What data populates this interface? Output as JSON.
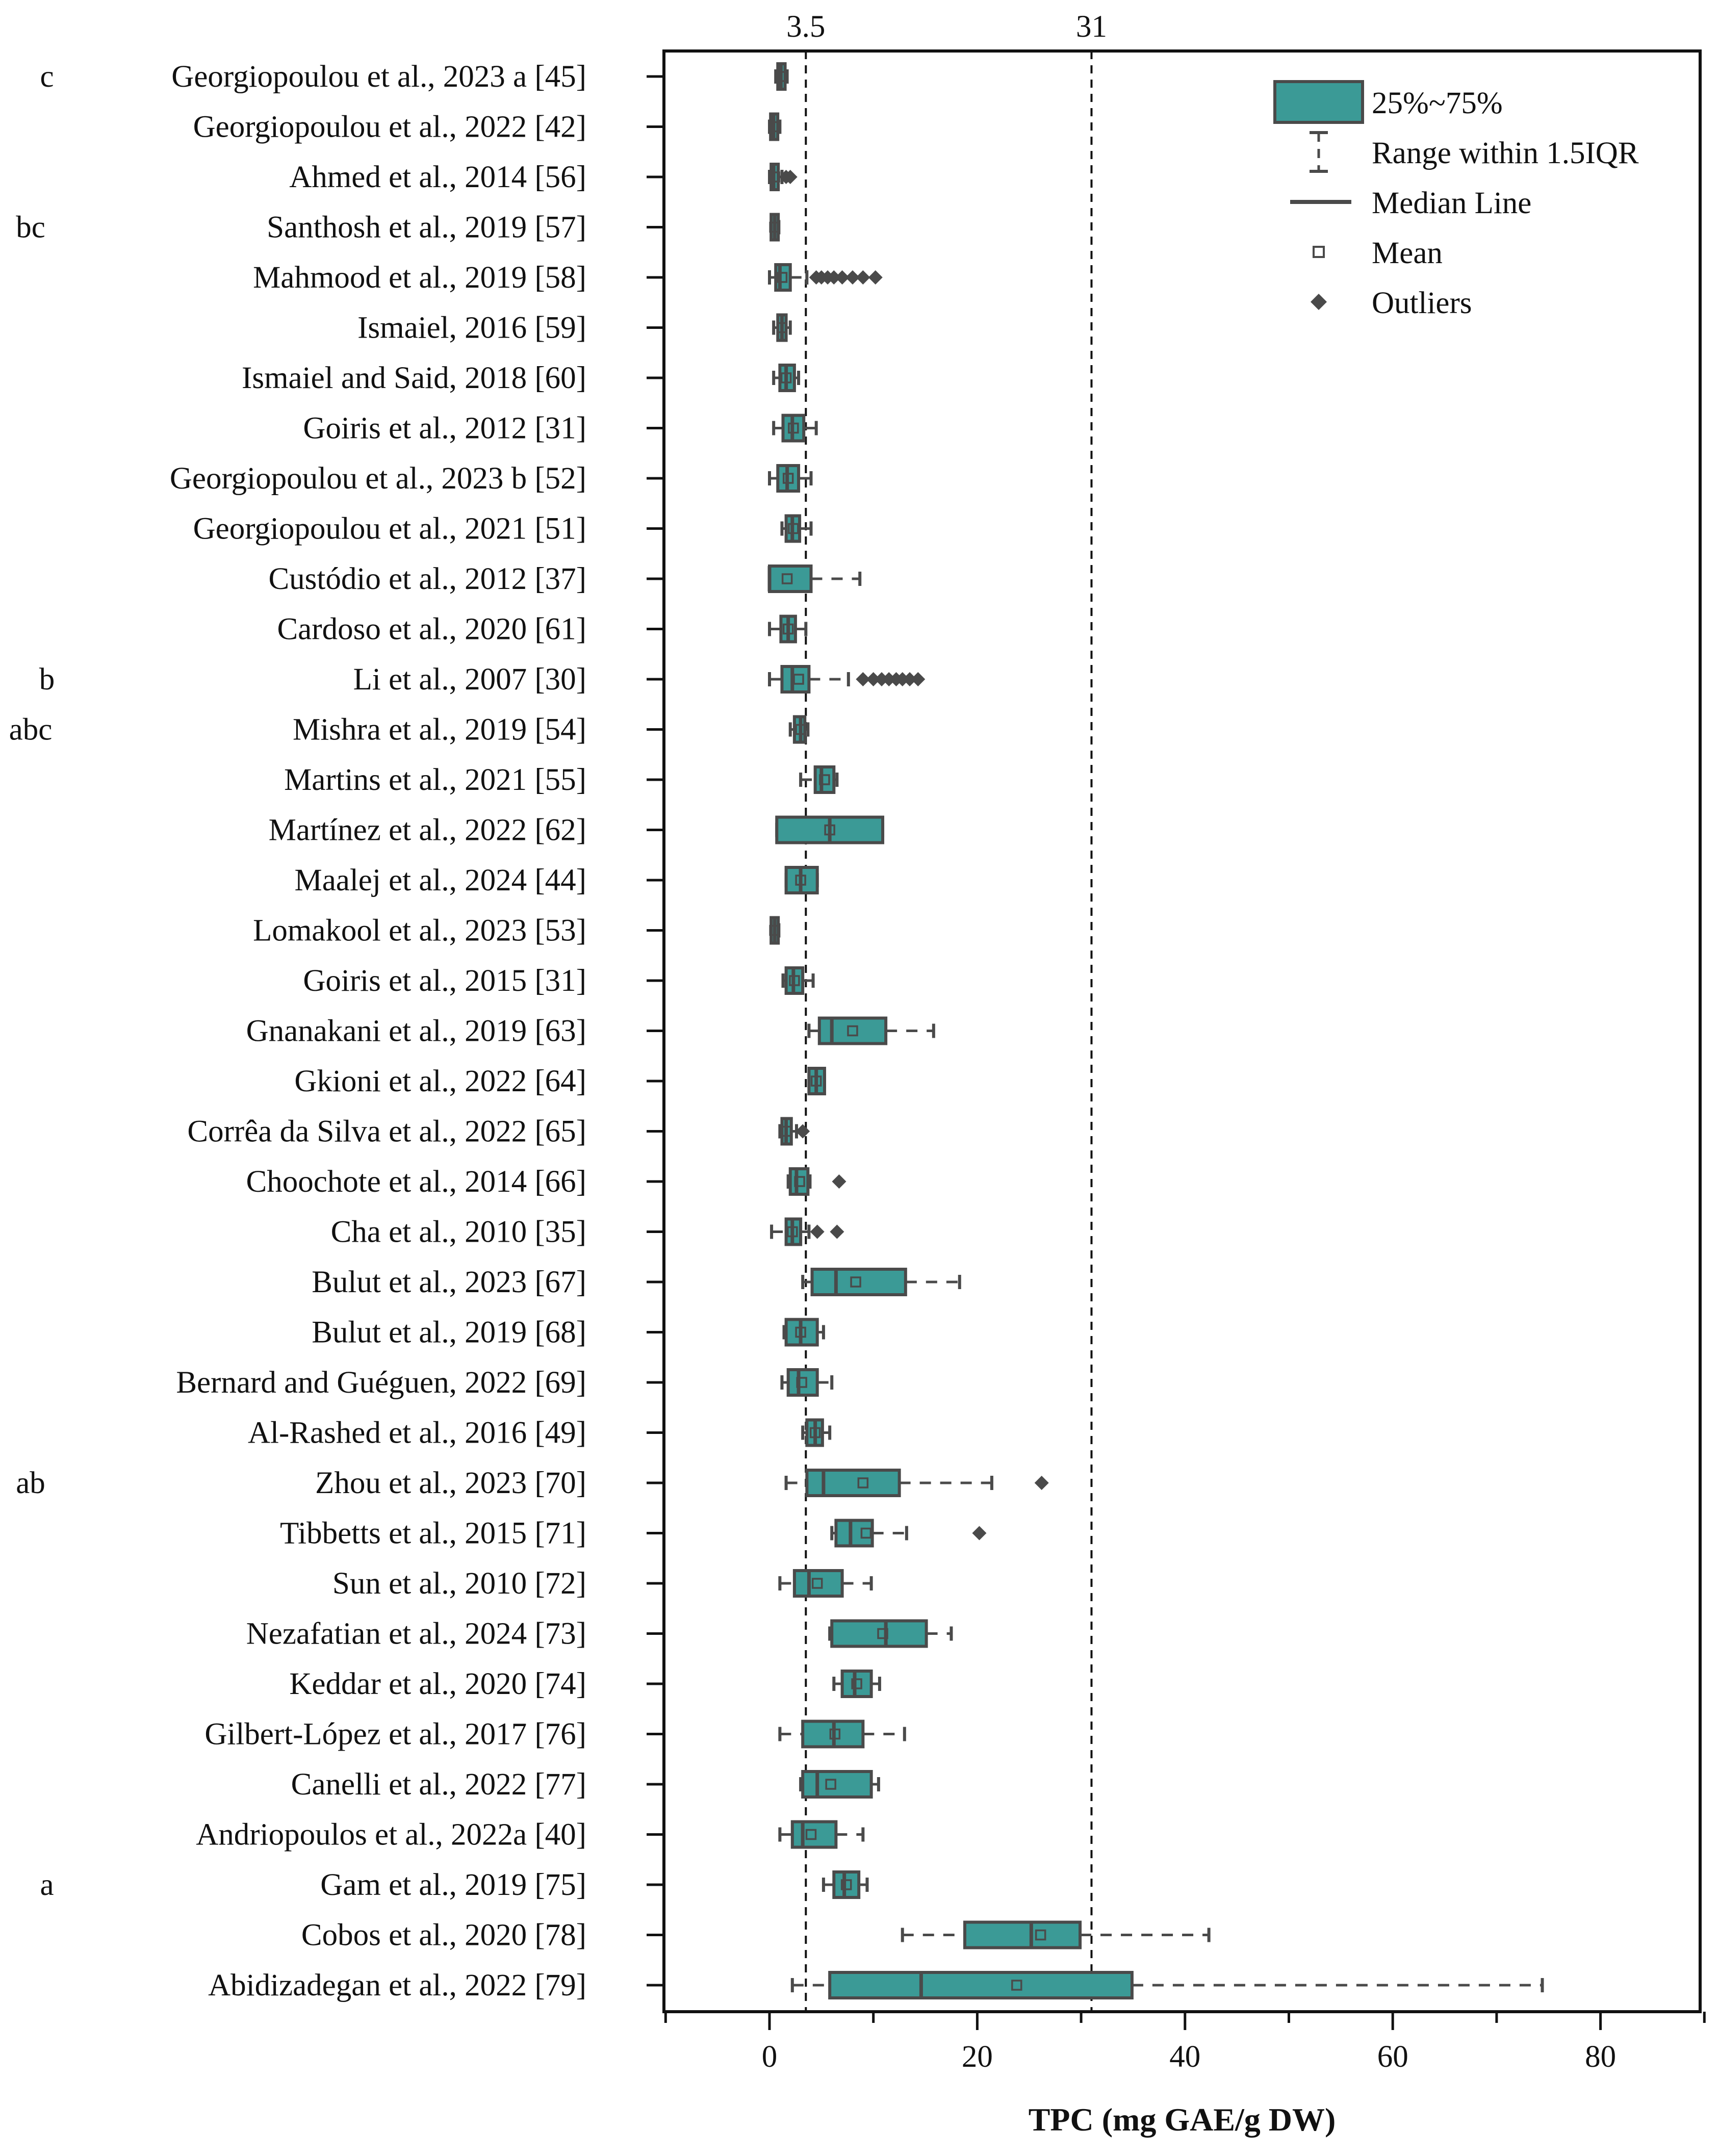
{
  "chart_data": {
    "type": "box",
    "orientation": "horizontal",
    "xlabel": "TPC (mg GAE/g DW)",
    "xlim": [
      -10,
      90
    ],
    "xticks": [
      0,
      20,
      40,
      60,
      80
    ],
    "reference_lines": [
      {
        "value": 3.5,
        "label": "3.5"
      },
      {
        "value": 31,
        "label": "31"
      }
    ],
    "legend": {
      "position": "top-right",
      "items": [
        {
          "key": "box",
          "label": "25%~75%"
        },
        {
          "key": "whisker",
          "label": "Range within 1.5IQR"
        },
        {
          "key": "median",
          "label": "Median Line"
        },
        {
          "key": "mean",
          "label": "Mean"
        },
        {
          "key": "outlier",
          "label": "Outliers"
        }
      ]
    },
    "colors": {
      "box": "#3b9a96",
      "line": "#4a4a4a"
    },
    "studies": [
      {
        "label": "Georgiopoulou et al., 2023 a [45]",
        "group": "c",
        "min": 0.6,
        "q1": 0.8,
        "median": 1.1,
        "q3": 1.5,
        "max": 1.7,
        "mean": 1.1,
        "outliers": []
      },
      {
        "label": "Georgiopoulou et al., 2022 [42]",
        "group": "",
        "min": 0.0,
        "q1": 0.2,
        "median": 0.4,
        "q3": 0.7,
        "max": 1.0,
        "mean": 0.4,
        "outliers": []
      },
      {
        "label": "Ahmed et al., 2014 [56]",
        "group": "",
        "min": 0.0,
        "q1": 0.2,
        "median": 0.4,
        "q3": 0.8,
        "max": 1.2,
        "mean": 0.5,
        "outliers": [
          1.6,
          2.0
        ]
      },
      {
        "label": "Santhosh et al., 2019 [57]",
        "group": "bc",
        "min": 0.2,
        "q1": 0.3,
        "median": 0.5,
        "q3": 0.7,
        "max": 0.9,
        "mean": 0.5,
        "outliers": []
      },
      {
        "label": "Mahmood et al., 2019 [58]",
        "group": "",
        "min": 0.0,
        "q1": 0.6,
        "median": 1.0,
        "q3": 2.0,
        "max": 3.6,
        "mean": 1.2,
        "outliers": [
          4.5,
          5.0,
          5.6,
          6.2,
          7.0,
          8.0,
          9.0,
          10.2
        ]
      },
      {
        "label": "Ismaiel, 2016 [59]",
        "group": "",
        "min": 0.4,
        "q1": 0.8,
        "median": 1.2,
        "q3": 1.6,
        "max": 2.0,
        "mean": 1.2,
        "outliers": []
      },
      {
        "label": "Ismaiel and Said, 2018 [60]",
        "group": "",
        "min": 0.4,
        "q1": 1.0,
        "median": 1.6,
        "q3": 2.4,
        "max": 2.8,
        "mean": 1.6,
        "outliers": []
      },
      {
        "label": "Goiris et al., 2012 [31]",
        "group": "",
        "min": 0.4,
        "q1": 1.3,
        "median": 2.2,
        "q3": 3.3,
        "max": 4.5,
        "mean": 2.3,
        "outliers": []
      },
      {
        "label": "Georgiopoulou et al., 2023 b [52]",
        "group": "",
        "min": 0.0,
        "q1": 0.8,
        "median": 1.7,
        "q3": 2.8,
        "max": 4.0,
        "mean": 1.8,
        "outliers": []
      },
      {
        "label": "Georgiopoulou et al., 2021 [51]",
        "group": "",
        "min": 1.2,
        "q1": 1.6,
        "median": 2.2,
        "q3": 2.9,
        "max": 4.0,
        "mean": 2.3,
        "outliers": []
      },
      {
        "label": "Custódio et al., 2012 [37]",
        "group": "",
        "min": 0.0,
        "q1": 0.0,
        "median": 0.0,
        "q3": 4.0,
        "max": 8.7,
        "mean": 1.7,
        "outliers": []
      },
      {
        "label": "Cardoso et al., 2020 [61]",
        "group": "",
        "min": 0.0,
        "q1": 1.1,
        "median": 1.8,
        "q3": 2.5,
        "max": 3.5,
        "mean": 1.8,
        "outliers": []
      },
      {
        "label": "Li et al., 2007 [30]",
        "group": "b",
        "min": 0.0,
        "q1": 1.2,
        "median": 2.2,
        "q3": 3.8,
        "max": 7.6,
        "mean": 2.8,
        "outliers": [
          9.0,
          10.0,
          10.8,
          11.5,
          12.2,
          12.8,
          13.5,
          14.3
        ]
      },
      {
        "label": "Mishra et al., 2019 [54]",
        "group": "abc",
        "min": 2.0,
        "q1": 2.4,
        "median": 3.0,
        "q3": 3.4,
        "max": 3.7,
        "mean": 3.0,
        "outliers": []
      },
      {
        "label": "Martins et al., 2021 [55]",
        "group": "",
        "min": 3.0,
        "q1": 4.4,
        "median": 5.0,
        "q3": 6.2,
        "max": 6.5,
        "mean": 5.3,
        "outliers": []
      },
      {
        "label": "Martínez et al., 2022 [62]",
        "group": "",
        "min": 0.7,
        "q1": 0.7,
        "median": 5.8,
        "q3": 10.9,
        "max": 10.9,
        "mean": 5.8,
        "outliers": []
      },
      {
        "label": "Maalej et al., 2024 [44]",
        "group": "",
        "min": 1.6,
        "q1": 1.6,
        "median": 3.0,
        "q3": 4.6,
        "max": 4.6,
        "mean": 3.0,
        "outliers": []
      },
      {
        "label": "Lomakool et al., 2023 [53]",
        "group": "",
        "min": 0.2,
        "q1": 0.3,
        "median": 0.5,
        "q3": 0.7,
        "max": 0.9,
        "mean": 0.5,
        "outliers": []
      },
      {
        "label": "Goiris et al., 2015 [31]",
        "group": "",
        "min": 1.3,
        "q1": 1.6,
        "median": 2.3,
        "q3": 3.2,
        "max": 4.2,
        "mean": 2.4,
        "outliers": []
      },
      {
        "label": "Gnanakani et al., 2019 [63]",
        "group": "",
        "min": 3.8,
        "q1": 4.8,
        "median": 6.0,
        "q3": 11.2,
        "max": 15.8,
        "mean": 8.0,
        "outliers": []
      },
      {
        "label": "Gkioni et al., 2022 [64]",
        "group": "",
        "min": 3.8,
        "q1": 3.8,
        "median": 4.5,
        "q3": 5.3,
        "max": 5.3,
        "mean": 4.5,
        "outliers": []
      },
      {
        "label": "Corrêa da Silva et al., 2022 [65]",
        "group": "",
        "min": 1.0,
        "q1": 1.2,
        "median": 1.6,
        "q3": 2.1,
        "max": 2.6,
        "mean": 1.6,
        "outliers": [
          3.2
        ]
      },
      {
        "label": "Choochote et al., 2014 [66]",
        "group": "",
        "min": 1.8,
        "q1": 2.0,
        "median": 2.6,
        "q3": 3.7,
        "max": 3.9,
        "mean": 2.9,
        "outliers": [
          6.7
        ]
      },
      {
        "label": "Cha et al., 2010 [35]",
        "group": "",
        "min": 0.2,
        "q1": 1.6,
        "median": 2.2,
        "q3": 3.0,
        "max": 3.8,
        "mean": 2.2,
        "outliers": [
          4.6,
          6.5
        ]
      },
      {
        "label": "Bulut et al., 2023 [67]",
        "group": "",
        "min": 3.2,
        "q1": 4.1,
        "median": 6.4,
        "q3": 13.1,
        "max": 18.3,
        "mean": 8.3,
        "outliers": []
      },
      {
        "label": "Bulut et al., 2019 [68]",
        "group": "",
        "min": 1.4,
        "q1": 1.6,
        "median": 3.0,
        "q3": 4.6,
        "max": 5.2,
        "mean": 3.0,
        "outliers": []
      },
      {
        "label": "Bernard and Guéguen, 2022 [69]",
        "group": "",
        "min": 1.2,
        "q1": 1.8,
        "median": 2.8,
        "q3": 4.6,
        "max": 6.0,
        "mean": 3.1,
        "outliers": []
      },
      {
        "label": "Al-Rashed et al., 2016 [49]",
        "group": "",
        "min": 3.2,
        "q1": 3.6,
        "median": 4.4,
        "q3": 5.1,
        "max": 5.8,
        "mean": 4.4,
        "outliers": []
      },
      {
        "label": "Zhou et al., 2023 [70]",
        "group": "ab",
        "min": 1.6,
        "q1": 3.6,
        "median": 5.2,
        "q3": 12.5,
        "max": 21.4,
        "mean": 9.0,
        "outliers": [
          26.2
        ]
      },
      {
        "label": "Tibbetts et al., 2015 [71]",
        "group": "",
        "min": 6.0,
        "q1": 6.4,
        "median": 7.8,
        "q3": 9.9,
        "max": 13.2,
        "mean": 9.3,
        "outliers": [
          20.2
        ]
      },
      {
        "label": "Sun et al., 2010 [72]",
        "group": "",
        "min": 1.0,
        "q1": 2.4,
        "median": 3.8,
        "q3": 7.0,
        "max": 9.8,
        "mean": 4.6,
        "outliers": []
      },
      {
        "label": "Nezafatian et al., 2024 [73]",
        "group": "",
        "min": 5.8,
        "q1": 6.0,
        "median": 11.2,
        "q3": 15.1,
        "max": 17.5,
        "mean": 10.9,
        "outliers": []
      },
      {
        "label": "Keddar et al., 2020 [74]",
        "group": "",
        "min": 6.2,
        "q1": 7.0,
        "median": 8.2,
        "q3": 9.8,
        "max": 10.6,
        "mean": 8.4,
        "outliers": []
      },
      {
        "label": "Gilbert-López et al., 2017 [76]",
        "group": "",
        "min": 1.0,
        "q1": 3.2,
        "median": 6.2,
        "q3": 9.0,
        "max": 13.0,
        "mean": 6.3,
        "outliers": []
      },
      {
        "label": "Canelli et al., 2022 [77]",
        "group": "",
        "min": 3.0,
        "q1": 3.2,
        "median": 4.6,
        "q3": 9.8,
        "max": 10.5,
        "mean": 5.9,
        "outliers": []
      },
      {
        "label": "Andriopoulos et al., 2022a [40]",
        "group": "",
        "min": 1.0,
        "q1": 2.2,
        "median": 3.2,
        "q3": 6.4,
        "max": 9.0,
        "mean": 4.0,
        "outliers": []
      },
      {
        "label": "Gam et al., 2019 [75]",
        "group": "a",
        "min": 5.2,
        "q1": 6.2,
        "median": 7.2,
        "q3": 8.6,
        "max": 9.4,
        "mean": 7.4,
        "outliers": []
      },
      {
        "label": "Cobos et al., 2020 [78]",
        "group": "",
        "min": 12.8,
        "q1": 18.8,
        "median": 25.2,
        "q3": 29.9,
        "max": 42.3,
        "mean": 26.1,
        "outliers": []
      },
      {
        "label": "Abidizadegan et al., 2022 [79]",
        "group": "",
        "min": 2.2,
        "q1": 5.8,
        "median": 14.6,
        "q3": 34.9,
        "max": 74.4,
        "mean": 23.8,
        "outliers": []
      }
    ]
  }
}
